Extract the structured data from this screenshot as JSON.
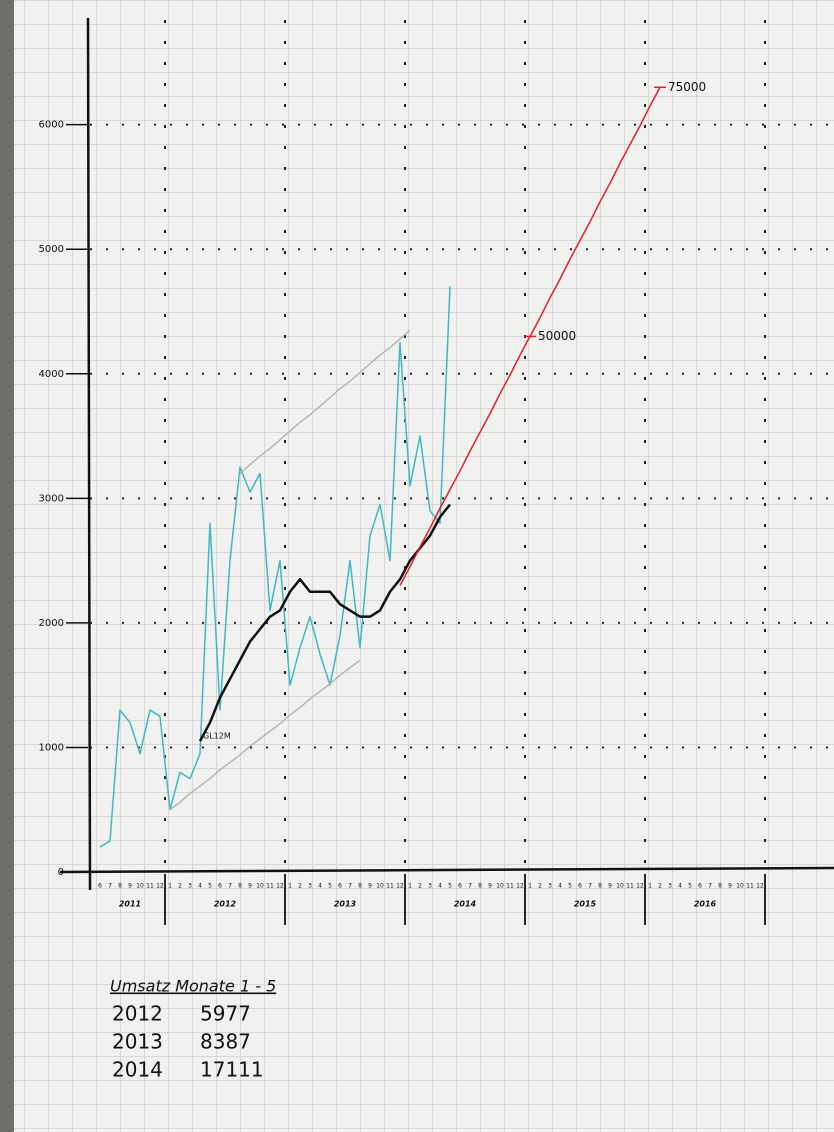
{
  "chart_data": {
    "type": "line",
    "categories": [
      "6",
      "7",
      "8",
      "9",
      "10",
      "11",
      "12",
      "1",
      "2",
      "3",
      "4",
      "5",
      "6",
      "7",
      "8",
      "9",
      "10",
      "11",
      "12",
      "1",
      "2",
      "3",
      "4",
      "5",
      "6",
      "7",
      "8",
      "9",
      "10",
      "11",
      "12",
      "1",
      "2",
      "3",
      "4",
      "5",
      "6",
      "7",
      "8",
      "9",
      "10",
      "11",
      "12",
      "1",
      "2",
      "3",
      "4",
      "5",
      "6",
      "7",
      "8",
      "9",
      "10",
      "11",
      "12",
      "1",
      "2",
      "3",
      "4",
      "5",
      "6",
      "7",
      "8",
      "9",
      "10",
      "11",
      "12"
    ],
    "year_labels": [
      "2011",
      "2012",
      "2013",
      "2014",
      "2015",
      "2016"
    ],
    "ylim": [
      0,
      6800
    ],
    "yticks": [
      0,
      1000,
      2000,
      3000,
      4000,
      5000,
      6000
    ],
    "grid": true,
    "series": [
      {
        "color": "#3fb8c6",
        "values": [
          200,
          250,
          1300,
          1200,
          950,
          1300,
          1250,
          500,
          800,
          750,
          950,
          2800,
          1300,
          2500,
          3250,
          3050,
          3200,
          2100,
          2500,
          1500,
          1800,
          2050,
          1750,
          1500,
          1900,
          2500,
          1800,
          2700,
          2950,
          2500,
          4250,
          3100,
          3500,
          2900,
          2800,
          4700,
          null,
          null,
          null,
          null,
          null,
          null,
          null,
          null,
          null,
          null,
          null,
          null,
          null,
          null,
          null,
          null,
          null,
          null,
          null,
          null,
          null,
          null,
          null,
          null,
          null,
          null,
          null,
          null,
          null,
          null,
          null
        ]
      },
      {
        "name": "GL12M",
        "color": "#111111",
        "values": [
          null,
          null,
          null,
          null,
          null,
          null,
          null,
          null,
          null,
          null,
          1050,
          1200,
          1400,
          1550,
          1700,
          1850,
          1950,
          2050,
          2100,
          2250,
          2350,
          2250,
          2250,
          2250,
          2150,
          2100,
          2050,
          2050,
          2100,
          2250,
          2350,
          2500,
          2600,
          2700,
          2850,
          2950,
          null,
          null,
          null,
          null,
          null,
          null,
          null,
          null,
          null,
          null,
          null,
          null,
          null,
          null,
          null,
          null,
          null,
          null,
          null,
          null,
          null,
          null,
          null,
          null,
          null,
          null,
          null,
          null,
          null,
          null,
          null
        ]
      },
      {
        "color": "#e0202a",
        "values": [
          null,
          null,
          null,
          null,
          null,
          null,
          null,
          null,
          null,
          null,
          null,
          null,
          null,
          null,
          null,
          null,
          null,
          null,
          null,
          null,
          null,
          null,
          null,
          null,
          null,
          null,
          null,
          null,
          null,
          null,
          2300,
          2450,
          2610,
          2760,
          2920,
          3070,
          3220,
          3380,
          3530,
          3680,
          3840,
          3990,
          4150,
          4300,
          4450,
          4610,
          4760,
          4920,
          5070,
          5220,
          5380,
          5530,
          5690,
          5840,
          5990,
          6150,
          6300,
          null,
          null,
          null,
          null,
          null,
          null,
          null,
          null,
          null,
          null
        ]
      },
      {
        "color": "#b5b5b5",
        "values": [
          null,
          null,
          null,
          null,
          null,
          null,
          null,
          null,
          null,
          null,
          null,
          null,
          null,
          null,
          3200,
          3270,
          3340,
          3400,
          3470,
          3540,
          3610,
          3670,
          3740,
          3810,
          3880,
          3940,
          4010,
          4080,
          4150,
          4210,
          4280,
          4350,
          null,
          null,
          null,
          null,
          null,
          null,
          null,
          null,
          null,
          null,
          null,
          null,
          null,
          null,
          null,
          null,
          null,
          null,
          null,
          null,
          null,
          null,
          null,
          null,
          null,
          null,
          null,
          null,
          null,
          null,
          null,
          null,
          null,
          null,
          null
        ]
      },
      {
        "color": "#b5b5b5",
        "values": [
          null,
          null,
          null,
          null,
          null,
          null,
          null,
          500,
          560,
          630,
          690,
          750,
          820,
          880,
          940,
          1010,
          1070,
          1130,
          1190,
          1260,
          1320,
          1390,
          1450,
          1510,
          1580,
          1640,
          1700,
          null,
          null,
          null,
          null,
          null,
          null,
          null,
          null,
          null,
          null,
          null,
          null,
          null,
          null,
          null,
          null,
          null,
          null,
          null,
          null,
          null,
          null,
          null,
          null,
          null,
          null,
          null,
          null,
          null,
          null,
          null,
          null,
          null,
          null,
          null,
          null,
          null,
          null,
          null,
          null
        ]
      }
    ],
    "annotations": [
      "50000",
      "75000"
    ],
    "table": {
      "title": "Umsatz Monate 1 - 5",
      "rows": [
        [
          "2012",
          "5977"
        ],
        [
          "2013",
          "8387"
        ],
        [
          "2014",
          "17111"
        ]
      ]
    }
  }
}
